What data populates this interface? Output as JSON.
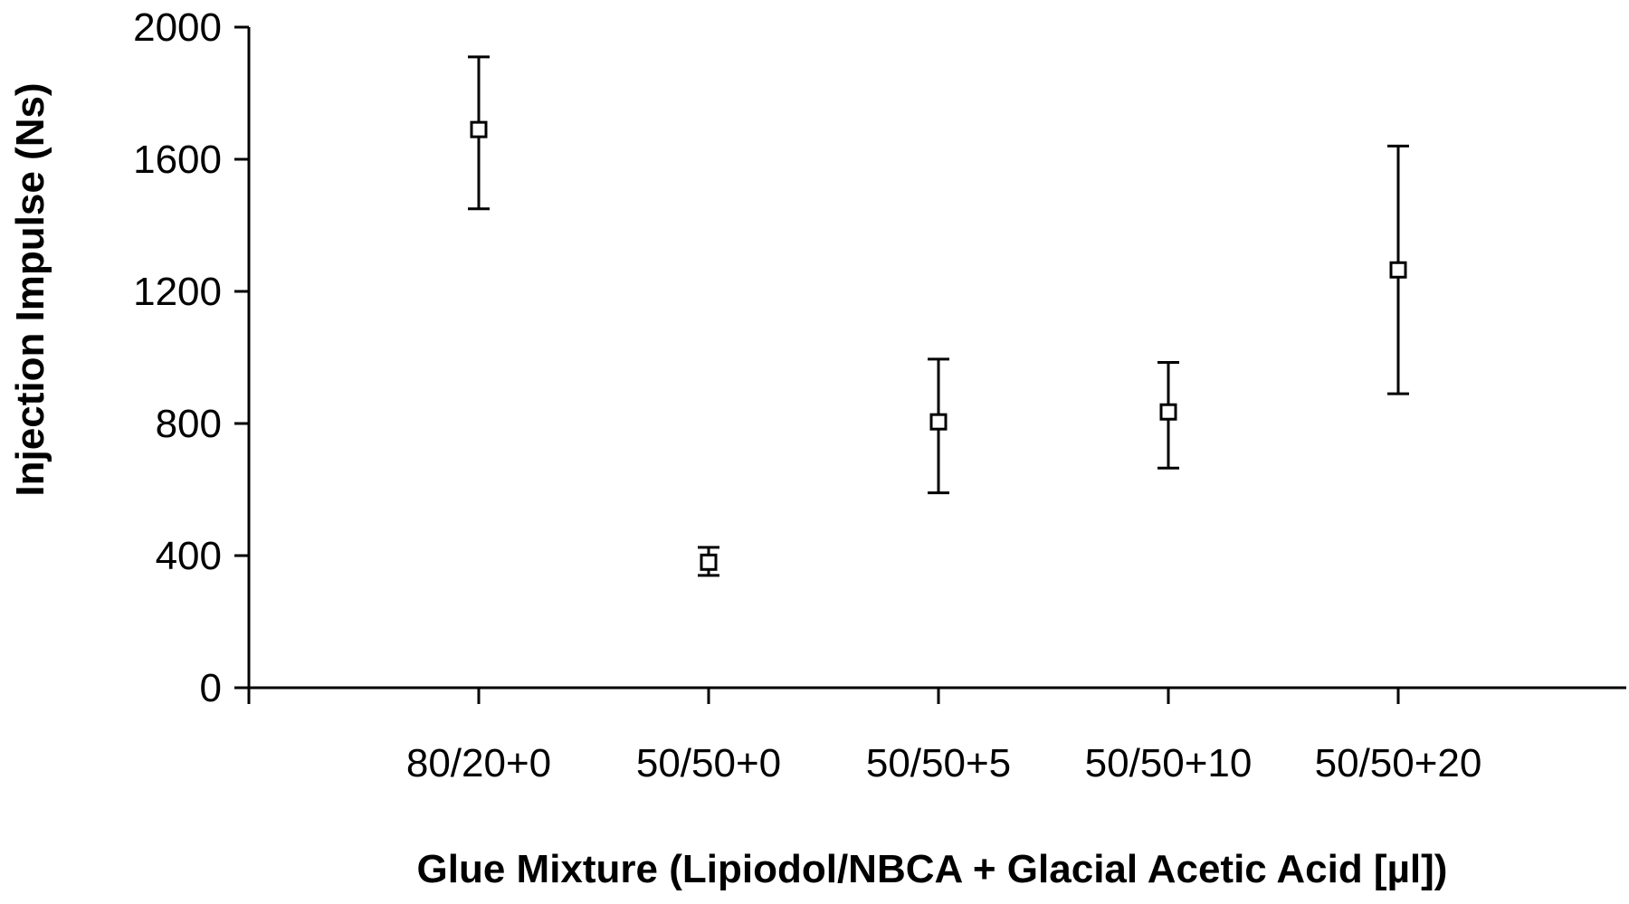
{
  "chart_data": {
    "type": "scatter",
    "title": "",
    "xlabel": "Glue Mixture (Lipiodol/NBCA + Glacial Acetic Acid [µl])",
    "ylabel": "Injection Impulse (Ns)",
    "categories": [
      "80/20+0",
      "50/50+0",
      "50/50+5",
      "50/50+10",
      "50/50+20"
    ],
    "series": [
      {
        "marker": "open-square",
        "values": [
          1690,
          380,
          805,
          835,
          1265
        ],
        "error_low": [
          1450,
          340,
          590,
          665,
          890
        ],
        "error_high": [
          1910,
          425,
          995,
          985,
          1640
        ]
      }
    ],
    "ylim": [
      0,
      2000
    ],
    "yticks": [
      "0",
      "400",
      "800",
      "1200",
      "1600",
      "2000"
    ],
    "grid": false,
    "legend": "none",
    "colors": {
      "axis": "#000000",
      "marker": "#000000",
      "background": "#ffffff"
    }
  }
}
